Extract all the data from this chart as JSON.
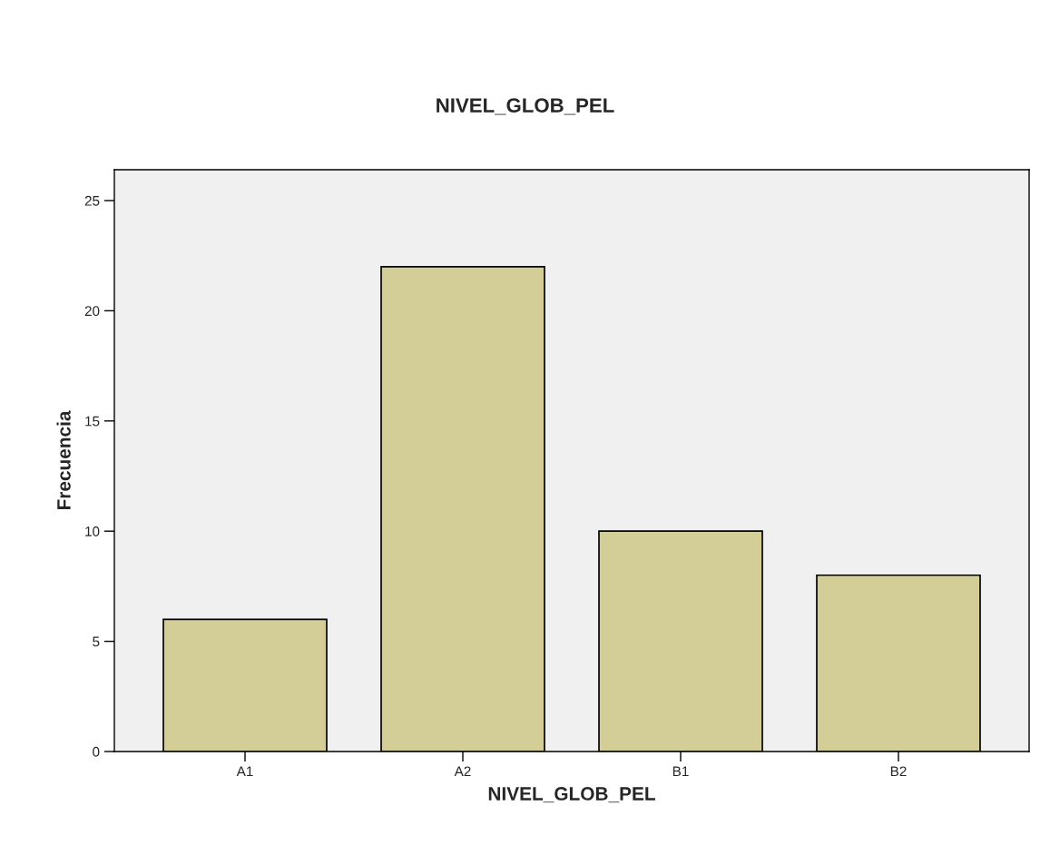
{
  "chart_data": {
    "type": "bar",
    "title": "NIVEL_GLOB_PEL",
    "xlabel": "NIVEL_GLOB_PEL",
    "ylabel": "Frecuencia",
    "categories": [
      "A1",
      "A2",
      "B1",
      "B2"
    ],
    "values": [
      6,
      22,
      10,
      8
    ],
    "color": "#d3ce97",
    "ylim": [
      0,
      26.4
    ],
    "yticks": [
      0,
      5,
      10,
      15,
      20,
      25
    ],
    "grid": false
  }
}
